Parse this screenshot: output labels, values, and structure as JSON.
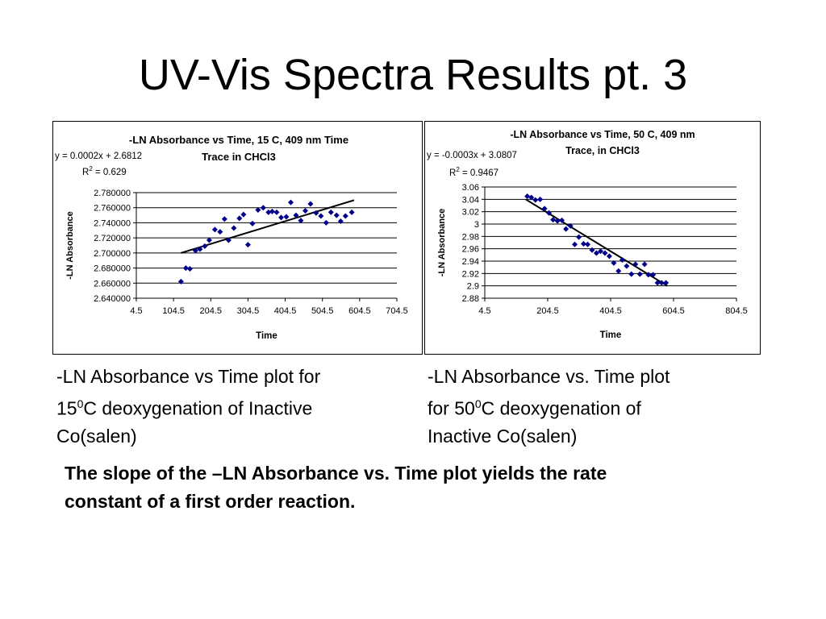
{
  "slide": {
    "title": "UV-Vis Spectra Results pt. 3",
    "caption1": {
      "line1": "-LN Absorbance vs Time plot for",
      "line2_pre": "15",
      "line2_sup": "0",
      "line2_post": "C deoxygenation of Inactive",
      "line3": "Co(salen)"
    },
    "caption2": {
      "line1": "-LN Absorbance vs. Time plot",
      "line2_pre": "for 50",
      "line2_sup": "0",
      "line2_post": "C deoxygenation of",
      "line3": "Inactive Co(salen)"
    },
    "note": {
      "line1": "The slope of the –LN Absorbance vs. Time plot yields the rate",
      "line2": "constant of a first order reaction."
    }
  },
  "chart_data": [
    {
      "type": "scatter",
      "title_line1": "-LN Absorbance vs Time, 15 C, 409 nm Time",
      "title_line2": "Trace in CHCl3",
      "xlabel": "Time",
      "ylabel": "-LN Absorbance",
      "equation": "y = 0.0002x + 2.6812",
      "r2_label": "R",
      "r2_sup": "2",
      "r2_value": " = 0.629",
      "xlim": [
        4.5,
        704.5
      ],
      "ylim": [
        2.64,
        2.78
      ],
      "x_ticks": [
        4.5,
        104.5,
        204.5,
        304.5,
        404.5,
        504.5,
        604.5,
        704.5
      ],
      "x_tick_labels": [
        "4.5",
        "104.5",
        "204.5",
        "304.5",
        "404.5",
        "504.5",
        "604.5",
        "704.5"
      ],
      "y_ticks": [
        2.64,
        2.66,
        2.68,
        2.7,
        2.72,
        2.74,
        2.76,
        2.78
      ],
      "y_tick_labels": [
        "2.640000",
        "2.660000",
        "2.680000",
        "2.700000",
        "2.720000",
        "2.740000",
        "2.760000",
        "2.780000"
      ],
      "grid": true,
      "marker_color": "#00008B",
      "trendline": {
        "x": [
          124.5,
          589.5
        ],
        "y": [
          2.7,
          2.77
        ]
      },
      "x": [
        124.5,
        137.5,
        148.5,
        163.5,
        175.5,
        188.5,
        200.5,
        215.5,
        229.5,
        241.5,
        252.5,
        266.5,
        281.5,
        292.5,
        304.5,
        316.5,
        331.5,
        345.5,
        359.5,
        369.5,
        381.5,
        393.5,
        407.5,
        419.5,
        433.5,
        446.5,
        458.5,
        472.5,
        487.5,
        500.5,
        514.5,
        527.5,
        542.5,
        553.5,
        566.5,
        583.5
      ],
      "y": [
        2.662,
        2.68,
        2.679,
        2.703,
        2.705,
        2.709,
        2.717,
        2.731,
        2.728,
        2.745,
        2.717,
        2.733,
        2.746,
        2.751,
        2.711,
        2.739,
        2.757,
        2.76,
        2.754,
        2.755,
        2.754,
        2.747,
        2.748,
        2.767,
        2.75,
        2.743,
        2.756,
        2.765,
        2.753,
        2.749,
        2.74,
        2.754,
        2.75,
        2.742,
        2.749,
        2.754
      ]
    },
    {
      "type": "scatter",
      "title_line1": "-LN Absorbance vs Time, 50 C, 409 nm",
      "title_line2": "Trace, in CHCl3",
      "xlabel": "Time",
      "ylabel": "-LN Absorbance",
      "equation": "y = -0.0003x + 3.0807",
      "r2_label": "R",
      "r2_sup": "2",
      "r2_value": " = 0.9467",
      "xlim": [
        4.5,
        804.5
      ],
      "ylim": [
        2.88,
        3.06
      ],
      "x_ticks": [
        4.5,
        204.5,
        404.5,
        604.5,
        804.5
      ],
      "x_tick_labels": [
        "4.5",
        "204.5",
        "404.5",
        "604.5",
        "804.5"
      ],
      "y_ticks": [
        2.88,
        2.9,
        2.92,
        2.94,
        2.96,
        2.98,
        3.0,
        3.02,
        3.04,
        3.06
      ],
      "y_tick_labels": [
        "2.88",
        "2.9",
        "2.92",
        "2.94",
        "2.96",
        "2.98",
        "3",
        "3.02",
        "3.04",
        "3.06"
      ],
      "grid": true,
      "marker_color": "#00008B",
      "trendline": {
        "x": [
          134.5,
          584.5
        ],
        "y": [
          3.04,
          2.9
        ]
      },
      "x": [
        139.5,
        152.5,
        165.5,
        180.5,
        194.5,
        208.5,
        221.5,
        235.5,
        249.5,
        262.5,
        276.5,
        290.5,
        303.5,
        318.5,
        331.5,
        345.5,
        359.5,
        372.5,
        386.5,
        400.5,
        414.5,
        429.5,
        441.5,
        455.5,
        470.5,
        483.5,
        497.5,
        512.5,
        524.5,
        539.5,
        553.5,
        566.5,
        580.5
      ],
      "y": [
        3.045,
        3.043,
        3.039,
        3.04,
        3.025,
        3.018,
        3.007,
        3.005,
        3.006,
        2.992,
        2.997,
        2.967,
        2.979,
        2.968,
        2.967,
        2.958,
        2.953,
        2.956,
        2.953,
        2.948,
        2.937,
        2.924,
        2.942,
        2.932,
        2.919,
        2.935,
        2.919,
        2.935,
        2.918,
        2.918,
        2.905,
        2.905,
        2.905
      ]
    }
  ]
}
